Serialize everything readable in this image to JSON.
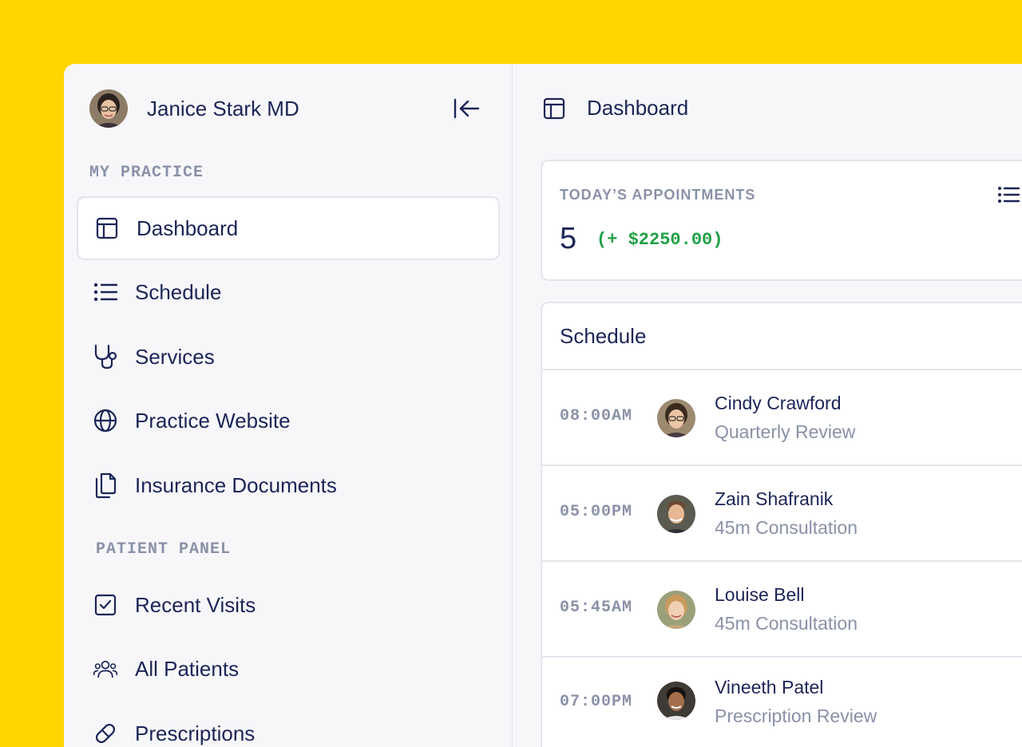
{
  "user": {
    "name": "Janice Stark MD",
    "avatar_icon": "user-avatar"
  },
  "sidebar": {
    "collapse_icon": "collapse-left-icon",
    "sections": [
      {
        "label": "MY PRACTICE",
        "items": [
          {
            "label": "Dashboard",
            "icon": "dashboard-icon",
            "active": true
          },
          {
            "label": "Schedule",
            "icon": "list-icon",
            "active": false
          },
          {
            "label": "Services",
            "icon": "stethoscope-icon",
            "active": false
          },
          {
            "label": "Practice Website",
            "icon": "globe-icon",
            "active": false
          },
          {
            "label": "Insurance Documents",
            "icon": "documents-icon",
            "active": false
          }
        ]
      },
      {
        "label": "PATIENT PANEL",
        "items": [
          {
            "label": "Recent Visits",
            "icon": "checkbox-icon",
            "active": false
          },
          {
            "label": "All Patients",
            "icon": "users-icon",
            "active": false
          },
          {
            "label": "Prescriptions",
            "icon": "pill-icon",
            "active": false
          }
        ]
      }
    ]
  },
  "main": {
    "title": "Dashboard",
    "appointments": {
      "label": "TODAY’S APPOINTMENTS",
      "count": "5",
      "amount": "(+ $2250.00)"
    },
    "schedule": {
      "title": "Schedule",
      "rows": [
        {
          "time": "08:00AM",
          "name": "Cindy Crawford",
          "service": "Quarterly Review"
        },
        {
          "time": "05:00PM",
          "name": "Zain Shafranik",
          "service": "45m Consultation"
        },
        {
          "time": "05:45AM",
          "name": "Louise Bell",
          "service": "45m Consultation"
        },
        {
          "time": "07:00PM",
          "name": "Vineeth Patel",
          "service": "Prescription Review"
        }
      ]
    }
  },
  "colors": {
    "background": "#FFD600",
    "panel": "#F7F7FA",
    "text": "#1B2557",
    "muted": "#8A91A8",
    "positive": "#1FA045",
    "border": "#E3E5EC"
  }
}
